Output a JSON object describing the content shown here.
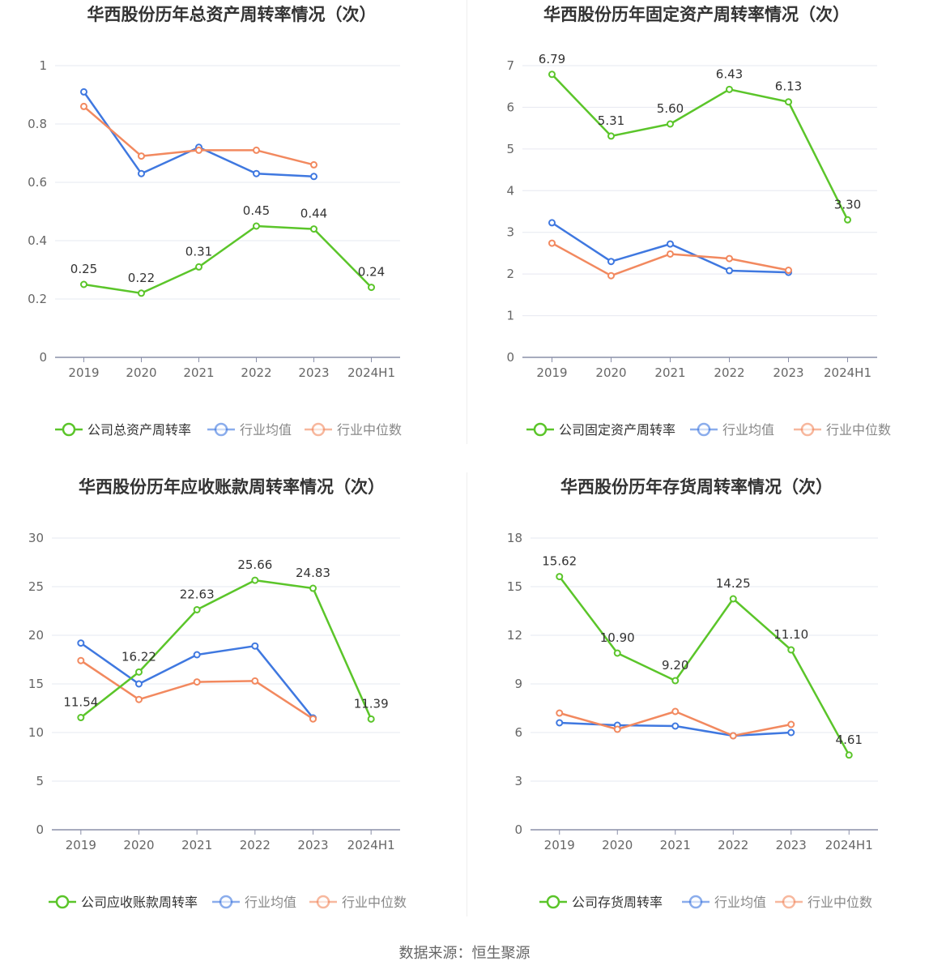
{
  "colors": {
    "company": "#5bc52a",
    "industry_avg": "#3f78e0",
    "industry_median": "#f2895f",
    "grid": "#e6e8f0",
    "axis": "#8a8fa8",
    "tick_text": "#666666",
    "title": "#333333"
  },
  "source": "数据来源：恒生聚源",
  "chart_data": [
    {
      "type": "line",
      "title": "华西股份历年总资产周转率情况（次）",
      "categories": [
        "2019",
        "2020",
        "2021",
        "2022",
        "2023",
        "2024H1"
      ],
      "yticks": [
        "0",
        "0.2",
        "0.4",
        "0.6",
        "0.8",
        "1"
      ],
      "ylim": [
        0,
        1
      ],
      "grid": true,
      "legend_position": "bottom",
      "label_decimals": 2,
      "series": [
        {
          "name": "公司总资产周转率",
          "key": "company",
          "values": [
            0.25,
            0.22,
            0.31,
            0.45,
            0.44,
            0.24
          ],
          "labels": [
            "0.25",
            "0.22",
            "0.31",
            "0.45",
            "0.44",
            "0.24"
          ]
        },
        {
          "name": "行业均值",
          "key": "industry_avg",
          "values": [
            0.91,
            0.63,
            0.72,
            0.63,
            0.62,
            null
          ]
        },
        {
          "name": "行业中位数",
          "key": "industry_median",
          "values": [
            0.86,
            0.69,
            0.71,
            0.71,
            0.66,
            null
          ]
        }
      ]
    },
    {
      "type": "line",
      "title": "华西股份历年固定资产周转率情况（次）",
      "categories": [
        "2019",
        "2020",
        "2021",
        "2022",
        "2023",
        "2024H1"
      ],
      "yticks": [
        "0",
        "1",
        "2",
        "3",
        "4",
        "5",
        "6",
        "7"
      ],
      "ylim": [
        0,
        7
      ],
      "grid": true,
      "legend_position": "bottom",
      "series": [
        {
          "name": "公司固定资产周转率",
          "key": "company",
          "values": [
            6.79,
            5.31,
            5.6,
            6.43,
            6.13,
            3.3
          ],
          "labels": [
            "6.79",
            "5.31",
            "5.60",
            "6.43",
            "6.13",
            "3.30"
          ]
        },
        {
          "name": "行业均值",
          "key": "industry_avg",
          "values": [
            3.23,
            2.3,
            2.72,
            2.08,
            2.04,
            null
          ]
        },
        {
          "name": "行业中位数",
          "key": "industry_median",
          "values": [
            2.74,
            1.96,
            2.48,
            2.37,
            2.09,
            null
          ]
        }
      ]
    },
    {
      "type": "line",
      "title": "华西股份历年应收账款周转率情况（次）",
      "categories": [
        "2019",
        "2020",
        "2021",
        "2022",
        "2023",
        "2024H1"
      ],
      "yticks": [
        "0",
        "5",
        "10",
        "15",
        "20",
        "25",
        "30"
      ],
      "ylim": [
        0,
        30
      ],
      "grid": true,
      "legend_position": "bottom",
      "series": [
        {
          "name": "公司应收账款周转率",
          "key": "company",
          "values": [
            11.54,
            16.22,
            22.63,
            25.66,
            24.83,
            11.39
          ],
          "labels": [
            "11.54",
            "16.22",
            "22.63",
            "25.66",
            "24.83",
            "11.39"
          ]
        },
        {
          "name": "行业均值",
          "key": "industry_avg",
          "values": [
            19.2,
            15.0,
            18.0,
            18.9,
            11.5,
            null
          ]
        },
        {
          "name": "行业中位数",
          "key": "industry_median",
          "values": [
            17.4,
            13.4,
            15.2,
            15.3,
            11.4,
            null
          ]
        }
      ]
    },
    {
      "type": "line",
      "title": "华西股份历年存货周转率情况（次）",
      "categories": [
        "2019",
        "2020",
        "2021",
        "2022",
        "2023",
        "2024H1"
      ],
      "yticks": [
        "0",
        "3",
        "6",
        "9",
        "12",
        "15",
        "18"
      ],
      "ylim": [
        0,
        18
      ],
      "grid": true,
      "legend_position": "bottom",
      "series": [
        {
          "name": "公司存货周转率",
          "key": "company",
          "values": [
            15.62,
            10.9,
            9.2,
            14.25,
            11.1,
            4.61
          ],
          "labels": [
            "15.62",
            "10.90",
            "9.20",
            "14.25",
            "11.10",
            "4.61"
          ]
        },
        {
          "name": "行业均值",
          "key": "industry_avg",
          "values": [
            6.6,
            6.45,
            6.4,
            5.8,
            6.0,
            null
          ]
        },
        {
          "name": "行业中位数",
          "key": "industry_median",
          "values": [
            7.2,
            6.2,
            7.3,
            5.8,
            6.5,
            null
          ]
        }
      ]
    }
  ]
}
